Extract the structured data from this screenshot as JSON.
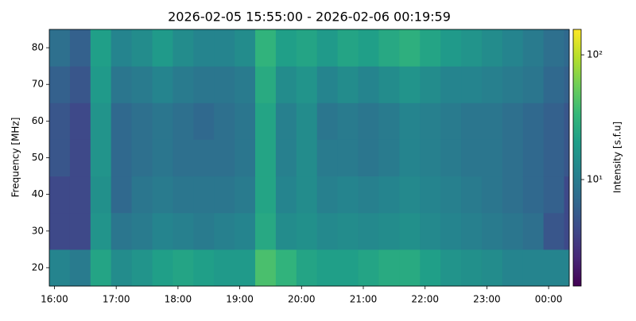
{
  "chart_data": {
    "type": "heatmap",
    "title": "2026-02-05 15:55:00 - 2026-02-06 00:19:59",
    "ylabel": "Frequency [MHz]",
    "colorbar_label": "Intensity [s.f.u]",
    "colormap": "viridis",
    "color_scale": "log",
    "x": [
      "15:55",
      "16:15",
      "16:35",
      "16:55",
      "17:15",
      "17:35",
      "17:55",
      "18:15",
      "18:35",
      "18:55",
      "19:15",
      "19:35",
      "19:55",
      "20:15",
      "20:35",
      "20:55",
      "21:15",
      "21:35",
      "21:55",
      "22:15",
      "22:35",
      "22:55",
      "23:15",
      "23:35",
      "23:55",
      "00:15"
    ],
    "xlim": [
      "15:55",
      "00:20"
    ],
    "xticks": [
      "16:00",
      "17:00",
      "18:00",
      "19:00",
      "20:00",
      "21:00",
      "22:00",
      "23:00",
      "00:00"
    ],
    "y": [
      20,
      30,
      40,
      50,
      60,
      70,
      80
    ],
    "ylim": [
      15,
      85
    ],
    "yticks": [
      20,
      30,
      40,
      50,
      60,
      70,
      80
    ],
    "clim": [
      1.4,
      160
    ],
    "cticks": [
      {
        "value": 10,
        "label": "10¹"
      },
      {
        "value": 100,
        "label": "10²"
      }
    ],
    "z": [
      [
        12,
        10,
        22,
        14,
        16,
        20,
        22,
        20,
        18,
        18,
        40,
        30,
        22,
        20,
        20,
        22,
        25,
        25,
        20,
        16,
        15,
        14,
        12,
        12,
        12,
        12
      ],
      [
        4,
        4,
        16,
        9,
        10,
        12,
        11,
        10,
        11,
        12,
        24,
        14,
        15,
        13,
        14,
        13,
        14,
        15,
        13,
        12,
        11,
        10,
        9,
        8,
        5,
        4
      ],
      [
        4,
        4,
        15,
        7,
        9,
        10,
        9,
        9,
        9,
        10,
        22,
        12,
        14,
        11,
        12,
        11,
        12,
        13,
        12,
        11,
        10,
        9,
        8,
        7,
        6,
        4
      ],
      [
        5,
        4,
        16,
        7,
        8,
        9,
        8,
        8,
        8,
        9,
        22,
        11,
        14,
        10,
        10,
        9,
        10,
        12,
        11,
        10,
        9,
        9,
        8,
        7,
        6,
        5
      ],
      [
        5,
        4,
        16,
        7,
        8,
        9,
        8,
        7,
        8,
        9,
        22,
        11,
        14,
        9,
        10,
        9,
        10,
        12,
        11,
        10,
        9,
        9,
        8,
        7,
        6,
        5
      ],
      [
        6,
        5,
        18,
        9,
        10,
        12,
        10,
        9,
        9,
        10,
        25,
        14,
        16,
        12,
        14,
        12,
        14,
        16,
        14,
        12,
        12,
        11,
        10,
        9,
        7,
        6
      ],
      [
        8,
        6,
        20,
        12,
        14,
        18,
        14,
        12,
        12,
        14,
        30,
        20,
        22,
        18,
        22,
        20,
        24,
        28,
        22,
        18,
        16,
        14,
        12,
        10,
        8,
        7
      ]
    ]
  }
}
